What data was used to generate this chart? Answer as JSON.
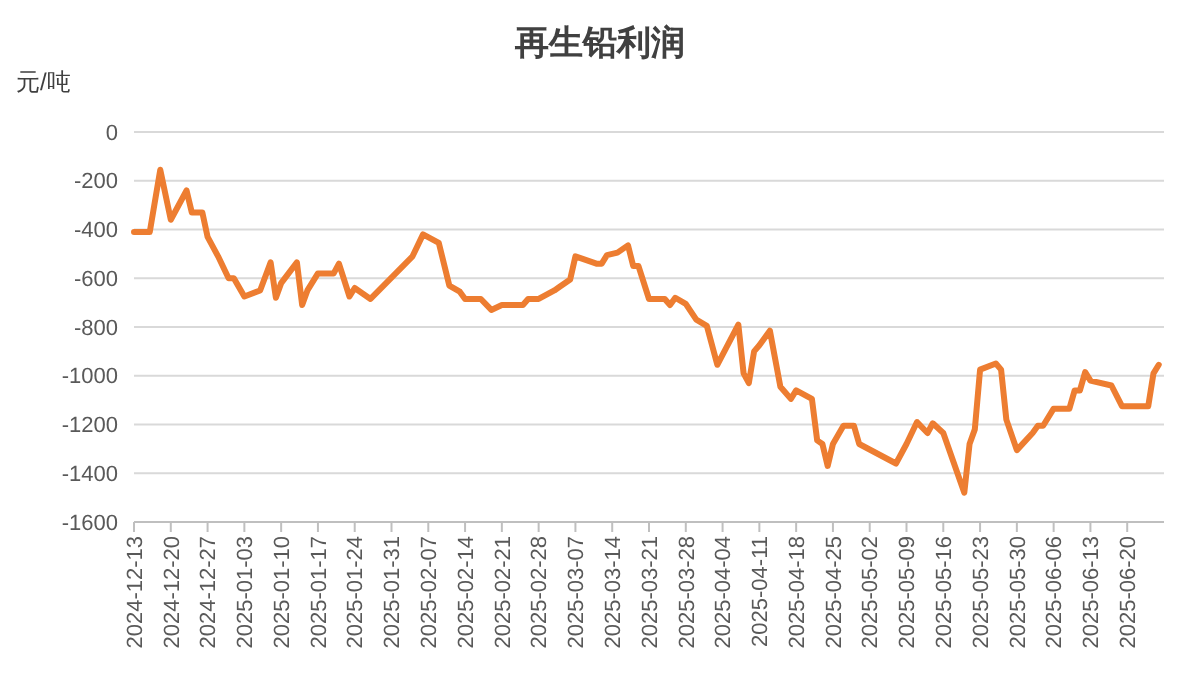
{
  "chart_data": {
    "type": "line",
    "title": "再生铅利润",
    "ylabel": "元/吨",
    "x": [
      "2024-12-13",
      "2024-12-16",
      "2024-12-18",
      "2024-12-20",
      "2024-12-23",
      "2024-12-24",
      "2024-12-26",
      "2024-12-27",
      "2024-12-29",
      "2024-12-31",
      "2025-01-01",
      "2025-01-03",
      "2025-01-06",
      "2025-01-08",
      "2025-01-09",
      "2025-01-10",
      "2025-01-13",
      "2025-01-14",
      "2025-01-15",
      "2025-01-17",
      "2025-01-20",
      "2025-01-21",
      "2025-01-23",
      "2025-01-24",
      "2025-01-27",
      "2025-02-04",
      "2025-02-06",
      "2025-02-09",
      "2025-02-11",
      "2025-02-13",
      "2025-02-14",
      "2025-02-17",
      "2025-02-19",
      "2025-02-21",
      "2025-02-25",
      "2025-02-26",
      "2025-02-28",
      "2025-03-03",
      "2025-03-04",
      "2025-03-06",
      "2025-03-07",
      "2025-03-11",
      "2025-03-12",
      "2025-03-13",
      "2025-03-15",
      "2025-03-17",
      "2025-03-18",
      "2025-03-19",
      "2025-03-21",
      "2025-03-24",
      "2025-03-25",
      "2025-03-26",
      "2025-03-28",
      "2025-03-30",
      "2025-04-01",
      "2025-04-03",
      "2025-04-07",
      "2025-04-08",
      "2025-04-09",
      "2025-04-10",
      "2025-04-11",
      "2025-04-13",
      "2025-04-15",
      "2025-04-17",
      "2025-04-18",
      "2025-04-21",
      "2025-04-22",
      "2025-04-23",
      "2025-04-24",
      "2025-04-25",
      "2025-04-27",
      "2025-04-29",
      "2025-04-30",
      "2025-05-07",
      "2025-05-09",
      "2025-05-11",
      "2025-05-13",
      "2025-05-14",
      "2025-05-16",
      "2025-05-20",
      "2025-05-21",
      "2025-05-22",
      "2025-05-23",
      "2025-05-26",
      "2025-05-27",
      "2025-05-28",
      "2025-05-30",
      "2025-06-02",
      "2025-06-03",
      "2025-06-04",
      "2025-06-06",
      "2025-06-09",
      "2025-06-10",
      "2025-06-11",
      "2025-06-12",
      "2025-06-13",
      "2025-06-17",
      "2025-06-19",
      "2025-06-24",
      "2025-06-25",
      "2025-06-26"
    ],
    "series": [
      {
        "color": "#ed7d31",
        "values": [
          -410,
          -410,
          -155,
          -360,
          -240,
          -330,
          -330,
          -430,
          -510,
          -600,
          -600,
          -675,
          -650,
          -535,
          -680,
          -620,
          -535,
          -710,
          -650,
          -580,
          -580,
          -540,
          -675,
          -640,
          -685,
          -510,
          -420,
          -455,
          -630,
          -655,
          -685,
          -685,
          -730,
          -710,
          -710,
          -685,
          -685,
          -650,
          -635,
          -605,
          -510,
          -540,
          -540,
          -505,
          -495,
          -465,
          -550,
          -550,
          -685,
          -685,
          -710,
          -680,
          -705,
          -770,
          -795,
          -955,
          -790,
          -990,
          -1030,
          -900,
          -875,
          -815,
          -1045,
          -1095,
          -1060,
          -1095,
          -1265,
          -1280,
          -1370,
          -1280,
          -1205,
          -1205,
          -1280,
          -1360,
          -1280,
          -1190,
          -1235,
          -1195,
          -1235,
          -1480,
          -1280,
          -1220,
          -975,
          -950,
          -975,
          -1180,
          -1305,
          -1235,
          -1205,
          -1205,
          -1135,
          -1135,
          -1060,
          -1060,
          -985,
          -1020,
          -1040,
          -1125,
          -1125,
          -990,
          -955
        ]
      }
    ],
    "xlim": [
      "2024-12-13",
      "2025-06-27"
    ],
    "xticks": [
      "2024-12-13",
      "2024-12-20",
      "2024-12-27",
      "2025-01-03",
      "2025-01-10",
      "2025-01-17",
      "2025-01-24",
      "2025-01-31",
      "2025-02-07",
      "2025-02-14",
      "2025-02-21",
      "2025-02-28",
      "2025-03-07",
      "2025-03-14",
      "2025-03-21",
      "2025-03-28",
      "2025-04-04",
      "2025-04-11",
      "2025-04-18",
      "2025-04-25",
      "2025-05-02",
      "2025-05-09",
      "2025-05-16",
      "2025-05-23",
      "2025-05-30",
      "2025-06-06",
      "2025-06-13",
      "2025-06-20"
    ],
    "ylim": [
      -1600,
      0
    ],
    "yticks": [
      0,
      -200,
      -400,
      -600,
      -800,
      -1000,
      -1200,
      -1400,
      -1600
    ],
    "grid": "y",
    "marker": "none",
    "line_style": "solid"
  }
}
